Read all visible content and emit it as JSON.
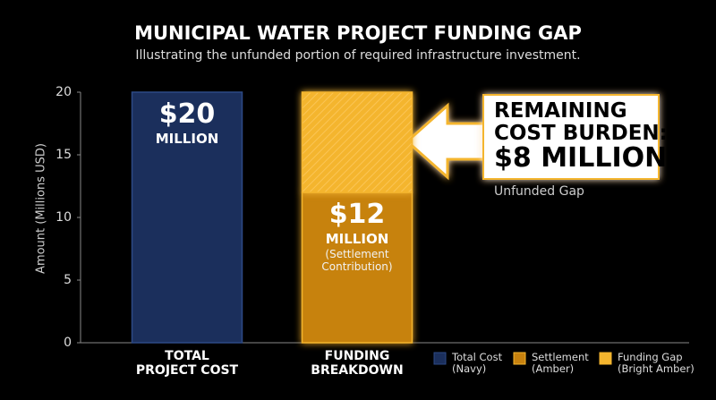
{
  "chart_data": {
    "type": "stacked-bar",
    "title": "MUNICIPAL WATER PROJECT FUNDING GAP",
    "subtitle": "Illustrating the unfunded portion of required infrastructure investment.",
    "y_label": "Amount (Millions USD)",
    "categories": [
      "TOTAL\nPROJECT COST",
      "FUNDING\nBREAKDOWN"
    ],
    "series": [
      {
        "name": "Total Cost\n(Navy)",
        "color": "#1b2f5c",
        "values": [
          20,
          null
        ],
        "value_labels": [
          "$20",
          null
        ]
      },
      {
        "name": "Settlement\n(Amber)",
        "color": "#c7820f",
        "values": [
          null,
          12
        ],
        "value_labels": [
          null,
          "$12"
        ]
      },
      {
        "name": "Funding Gap\n(Bright Amber)",
        "color": "#f4b52e",
        "values": [
          null,
          8
        ],
        "value_labels": [
          null,
          "$8 MILLION"
        ]
      }
    ],
    "value_unit": "MILLION",
    "settlement_note": "(Settlement\nContribution)",
    "annotation": {
      "title": "REMAINING\nCOST BURDEN:",
      "subtitle": "Unfunded Gap"
    },
    "ylim": [
      0,
      20
    ],
    "yticks": [
      0,
      5,
      10,
      15,
      20
    ]
  }
}
